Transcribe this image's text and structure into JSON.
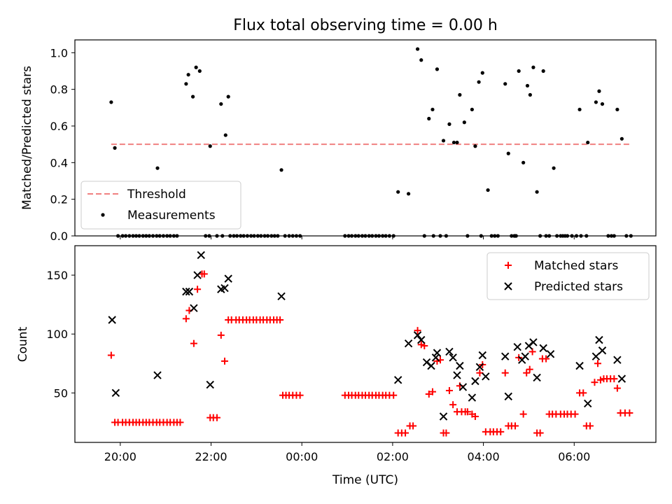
{
  "chart_data": [
    {
      "type": "scatter",
      "title": "Flux total observing time = 0.00 h",
      "ylabel": "Matched/Predicted stars",
      "xlabel": "",
      "xlim_hours": [
        -1.0,
        11.8
      ],
      "ylim": [
        0,
        1.07
      ],
      "yticks": [
        0.0,
        0.2,
        0.4,
        0.6,
        0.8,
        1.0
      ],
      "ytick_labels": [
        "0.0",
        "0.2",
        "0.4",
        "0.6",
        "0.8",
        "1.0"
      ],
      "legend_position": "lower-left",
      "threshold": {
        "name": "Threshold",
        "value": 0.5,
        "x_range": [
          -0.2,
          11.25
        ],
        "color": "#f08080"
      },
      "measurements": {
        "name": "Measurements",
        "color": "#000000",
        "points": [
          [
            -0.2,
            0.73
          ],
          [
            -0.12,
            0.48
          ],
          [
            0.82,
            0.37
          ],
          [
            1.45,
            0.83
          ],
          [
            1.5,
            0.88
          ],
          [
            1.6,
            0.76
          ],
          [
            1.67,
            0.92
          ],
          [
            1.75,
            0.9
          ],
          [
            1.98,
            0.49
          ],
          [
            2.22,
            0.72
          ],
          [
            2.32,
            0.55
          ],
          [
            2.38,
            0.76
          ],
          [
            3.55,
            0.36
          ],
          [
            6.12,
            0.24
          ],
          [
            6.35,
            0.23
          ],
          [
            6.55,
            1.02
          ],
          [
            6.63,
            0.96
          ],
          [
            6.8,
            0.64
          ],
          [
            6.88,
            0.69
          ],
          [
            6.98,
            0.91
          ],
          [
            7.12,
            0.52
          ],
          [
            7.25,
            0.61
          ],
          [
            7.35,
            0.51
          ],
          [
            7.42,
            0.51
          ],
          [
            7.48,
            0.77
          ],
          [
            7.58,
            0.62
          ],
          [
            7.75,
            0.69
          ],
          [
            7.82,
            0.49
          ],
          [
            7.9,
            0.84
          ],
          [
            7.98,
            0.89
          ],
          [
            8.1,
            0.25
          ],
          [
            8.48,
            0.83
          ],
          [
            8.55,
            0.45
          ],
          [
            8.78,
            0.9
          ],
          [
            8.88,
            0.4
          ],
          [
            8.97,
            0.82
          ],
          [
            9.03,
            0.77
          ],
          [
            9.1,
            0.92
          ],
          [
            9.18,
            0.24
          ],
          [
            9.32,
            0.9
          ],
          [
            9.55,
            0.37
          ],
          [
            10.12,
            0.69
          ],
          [
            10.3,
            0.51
          ],
          [
            10.48,
            0.73
          ],
          [
            10.55,
            0.79
          ],
          [
            10.62,
            0.72
          ],
          [
            10.95,
            0.69
          ],
          [
            11.05,
            0.53
          ]
        ],
        "zero_points": [
          -0.05,
          0.05,
          0.12,
          0.2,
          0.28,
          0.35,
          0.42,
          0.5,
          0.57,
          0.64,
          0.72,
          0.8,
          0.87,
          0.95,
          1.03,
          1.1,
          1.18,
          1.25,
          1.88,
          1.96,
          2.13,
          2.25,
          2.42,
          2.5,
          2.57,
          2.65,
          2.72,
          2.8,
          2.88,
          2.95,
          3.03,
          3.1,
          3.18,
          3.25,
          3.33,
          3.4,
          3.47,
          3.63,
          3.72,
          3.8,
          3.88,
          3.96,
          4.95,
          5.03,
          5.1,
          5.18,
          5.25,
          5.33,
          5.4,
          5.48,
          5.55,
          5.63,
          5.7,
          5.78,
          5.85,
          5.93,
          6.02,
          6.7,
          6.9,
          7.05,
          7.18,
          7.65,
          7.95,
          8.18,
          8.25,
          8.32,
          8.62,
          8.68,
          8.7,
          8.72,
          9.25,
          9.38,
          9.45,
          9.62,
          9.7,
          9.75,
          9.8,
          9.85,
          9.95,
          10.05,
          10.15,
          10.27,
          10.75,
          10.82,
          10.88,
          11.15,
          11.25
        ]
      },
      "legend": [
        "Threshold",
        "Measurements"
      ]
    },
    {
      "type": "scatter",
      "title": "",
      "ylabel": "Count",
      "xlabel": "Time (UTC)",
      "xlim_hours": [
        -1.0,
        11.8
      ],
      "ylim": [
        8,
        175
      ],
      "yticks": [
        50,
        100,
        150
      ],
      "ytick_labels": [
        "50",
        "100",
        "150"
      ],
      "xticks_hours": [
        0,
        2,
        4,
        6,
        8,
        10
      ],
      "xtick_labels": [
        "20:00",
        "22:00",
        "00:00",
        "02:00",
        "04:00",
        "06:00"
      ],
      "legend_position": "upper-right",
      "series": [
        {
          "name": "Matched stars",
          "marker": "plus",
          "color": "#ff0000",
          "points": [
            [
              -0.2,
              82
            ],
            [
              -0.12,
              25
            ],
            [
              -0.05,
              25
            ],
            [
              0.05,
              25
            ],
            [
              0.12,
              25
            ],
            [
              0.2,
              25
            ],
            [
              0.28,
              25
            ],
            [
              0.35,
              25
            ],
            [
              0.42,
              25
            ],
            [
              0.5,
              25
            ],
            [
              0.57,
              25
            ],
            [
              0.64,
              25
            ],
            [
              0.72,
              25
            ],
            [
              0.8,
              25
            ],
            [
              0.87,
              25
            ],
            [
              0.95,
              25
            ],
            [
              1.03,
              25
            ],
            [
              1.1,
              25
            ],
            [
              1.18,
              25
            ],
            [
              1.25,
              25
            ],
            [
              1.32,
              25
            ],
            [
              1.45,
              113
            ],
            [
              1.52,
              120
            ],
            [
              1.62,
              92
            ],
            [
              1.7,
              138
            ],
            [
              1.8,
              151
            ],
            [
              1.85,
              151
            ],
            [
              1.98,
              29
            ],
            [
              2.05,
              29
            ],
            [
              2.13,
              29
            ],
            [
              2.22,
              99
            ],
            [
              2.3,
              77
            ],
            [
              2.38,
              112
            ],
            [
              2.45,
              112
            ],
            [
              2.55,
              112
            ],
            [
              2.62,
              112
            ],
            [
              2.7,
              112
            ],
            [
              2.78,
              112
            ],
            [
              2.85,
              112
            ],
            [
              2.93,
              112
            ],
            [
              3.0,
              112
            ],
            [
              3.08,
              112
            ],
            [
              3.15,
              112
            ],
            [
              3.23,
              112
            ],
            [
              3.3,
              112
            ],
            [
              3.38,
              112
            ],
            [
              3.45,
              112
            ],
            [
              3.52,
              112
            ],
            [
              3.58,
              48
            ],
            [
              3.65,
              48
            ],
            [
              3.72,
              48
            ],
            [
              3.8,
              48
            ],
            [
              3.88,
              48
            ],
            [
              3.96,
              48
            ],
            [
              4.95,
              48
            ],
            [
              5.03,
              48
            ],
            [
              5.1,
              48
            ],
            [
              5.18,
              48
            ],
            [
              5.25,
              48
            ],
            [
              5.33,
              48
            ],
            [
              5.4,
              48
            ],
            [
              5.48,
              48
            ],
            [
              5.55,
              48
            ],
            [
              5.63,
              48
            ],
            [
              5.7,
              48
            ],
            [
              5.78,
              48
            ],
            [
              5.85,
              48
            ],
            [
              5.93,
              48
            ],
            [
              6.02,
              48
            ],
            [
              6.12,
              16
            ],
            [
              6.2,
              16
            ],
            [
              6.28,
              16
            ],
            [
              6.38,
              22
            ],
            [
              6.45,
              22
            ],
            [
              6.55,
              103
            ],
            [
              6.63,
              91
            ],
            [
              6.7,
              90
            ],
            [
              6.8,
              49
            ],
            [
              6.88,
              51
            ],
            [
              6.98,
              77
            ],
            [
              7.05,
              78
            ],
            [
              7.12,
              16
            ],
            [
              7.18,
              16
            ],
            [
              7.25,
              52
            ],
            [
              7.33,
              40
            ],
            [
              7.42,
              34
            ],
            [
              7.48,
              56
            ],
            [
              7.52,
              34
            ],
            [
              7.6,
              34
            ],
            [
              7.65,
              34
            ],
            [
              7.75,
              32
            ],
            [
              7.82,
              30
            ],
            [
              7.92,
              67
            ],
            [
              7.98,
              74
            ],
            [
              8.05,
              17
            ],
            [
              8.15,
              17
            ],
            [
              8.22,
              17
            ],
            [
              8.3,
              17
            ],
            [
              8.38,
              17
            ],
            [
              8.48,
              67
            ],
            [
              8.55,
              22
            ],
            [
              8.62,
              22
            ],
            [
              8.7,
              22
            ],
            [
              8.78,
              80
            ],
            [
              8.88,
              32
            ],
            [
              8.95,
              67
            ],
            [
              9.02,
              70
            ],
            [
              9.08,
              85
            ],
            [
              9.18,
              16
            ],
            [
              9.25,
              16
            ],
            [
              9.3,
              79
            ],
            [
              9.38,
              79
            ],
            [
              9.45,
              32
            ],
            [
              9.52,
              32
            ],
            [
              9.6,
              32
            ],
            [
              9.7,
              32
            ],
            [
              9.78,
              32
            ],
            [
              9.85,
              32
            ],
            [
              9.93,
              32
            ],
            [
              10.02,
              32
            ],
            [
              10.12,
              50
            ],
            [
              10.2,
              50
            ],
            [
              10.27,
              22
            ],
            [
              10.35,
              22
            ],
            [
              10.45,
              59
            ],
            [
              10.52,
              75
            ],
            [
              10.58,
              61
            ],
            [
              10.65,
              62
            ],
            [
              10.72,
              62
            ],
            [
              10.8,
              62
            ],
            [
              10.88,
              62
            ],
            [
              10.95,
              54
            ],
            [
              11.02,
              33
            ],
            [
              11.12,
              33
            ],
            [
              11.22,
              33
            ]
          ]
        },
        {
          "name": "Predicted stars",
          "marker": "x",
          "color": "#000000",
          "points": [
            [
              -0.18,
              112
            ],
            [
              -0.1,
              50
            ],
            [
              0.82,
              65
            ],
            [
              1.45,
              136
            ],
            [
              1.52,
              136
            ],
            [
              1.62,
              122
            ],
            [
              1.7,
              150
            ],
            [
              1.78,
              167
            ],
            [
              1.98,
              57
            ],
            [
              2.22,
              138
            ],
            [
              2.3,
              139
            ],
            [
              2.38,
              147
            ],
            [
              3.55,
              132
            ],
            [
              6.12,
              61
            ],
            [
              6.35,
              92
            ],
            [
              6.55,
              99
            ],
            [
              6.63,
              95
            ],
            [
              6.75,
              76
            ],
            [
              6.85,
              73
            ],
            [
              6.95,
              80
            ],
            [
              6.98,
              84
            ],
            [
              7.12,
              30
            ],
            [
              7.25,
              85
            ],
            [
              7.33,
              80
            ],
            [
              7.42,
              65
            ],
            [
              7.48,
              73
            ],
            [
              7.55,
              55
            ],
            [
              7.75,
              46
            ],
            [
              7.82,
              60
            ],
            [
              7.92,
              72
            ],
            [
              7.98,
              82
            ],
            [
              8.05,
              64
            ],
            [
              8.48,
              81
            ],
            [
              8.55,
              47
            ],
            [
              8.75,
              89
            ],
            [
              8.85,
              78
            ],
            [
              8.92,
              81
            ],
            [
              9.0,
              90
            ],
            [
              9.1,
              93
            ],
            [
              9.18,
              63
            ],
            [
              9.32,
              88
            ],
            [
              9.48,
              83
            ],
            [
              10.12,
              73
            ],
            [
              10.3,
              41
            ],
            [
              10.48,
              81
            ],
            [
              10.55,
              95
            ],
            [
              10.62,
              86
            ],
            [
              10.95,
              78
            ],
            [
              11.05,
              62
            ]
          ]
        }
      ],
      "legend": [
        "Matched stars",
        "Predicted stars"
      ]
    }
  ]
}
